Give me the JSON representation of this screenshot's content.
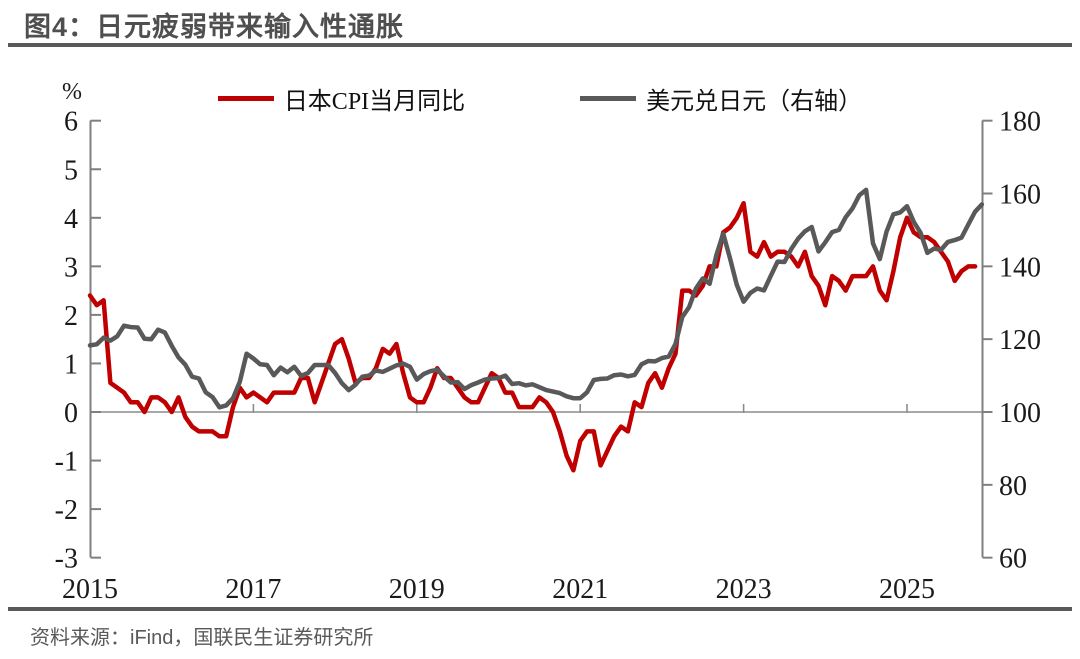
{
  "figure": {
    "title": "图4：日元疲弱带来输入性通胀",
    "source": "资料来源：iFind，国联民生证券研究所"
  },
  "colors": {
    "cpi_line": "#c00000",
    "usdjpy_line": "#595959",
    "divider": "#595959",
    "axis": "#7f7f7f",
    "zero_gridline": "#8c8c8c",
    "title_text": "#4f4f4f",
    "source_text": "#595959"
  },
  "chart_data": {
    "type": "line",
    "title": "图4：日元疲弱带来输入性通胀",
    "legend_position": "top",
    "gridlines": "zero-baseline-only",
    "x_axis": {
      "tick_labels": [
        "2015",
        "2017",
        "2019",
        "2021",
        "2023",
        "2025"
      ],
      "tick_years": [
        2015,
        2017,
        2019,
        2021,
        2023,
        2025
      ],
      "range_years": [
        2015.0,
        2025.92
      ]
    },
    "left_axis": {
      "unit": "%",
      "ticks": [
        6,
        5,
        4,
        3,
        2,
        1,
        0,
        -1,
        -2,
        -3
      ],
      "range": [
        -3,
        6
      ]
    },
    "right_axis": {
      "ticks": [
        180,
        160,
        140,
        120,
        100,
        80,
        60
      ],
      "range": [
        60,
        180
      ]
    },
    "series": [
      {
        "name": "日本CPI当月同比",
        "axis": "left",
        "color": "#c00000",
        "start": "2015-01",
        "freq": "monthly",
        "values": [
          2.4,
          2.2,
          2.3,
          0.6,
          0.5,
          0.4,
          0.2,
          0.2,
          0.0,
          0.3,
          0.3,
          0.2,
          0.0,
          0.3,
          -0.1,
          -0.3,
          -0.4,
          -0.4,
          -0.4,
          -0.5,
          -0.5,
          0.1,
          0.5,
          0.3,
          0.4,
          0.3,
          0.2,
          0.4,
          0.4,
          0.4,
          0.4,
          0.7,
          0.7,
          0.2,
          0.6,
          1.0,
          1.4,
          1.5,
          1.1,
          0.6,
          0.7,
          0.7,
          0.9,
          1.3,
          1.2,
          1.4,
          0.8,
          0.3,
          0.2,
          0.2,
          0.5,
          0.9,
          0.7,
          0.7,
          0.5,
          0.3,
          0.2,
          0.2,
          0.5,
          0.8,
          0.7,
          0.4,
          0.4,
          0.1,
          0.1,
          0.1,
          0.3,
          0.2,
          0.0,
          -0.4,
          -0.9,
          -1.2,
          -0.6,
          -0.4,
          -0.4,
          -1.1,
          -0.8,
          -0.5,
          -0.3,
          -0.4,
          0.2,
          0.1,
          0.6,
          0.8,
          0.5,
          0.9,
          1.2,
          2.5,
          2.5,
          2.4,
          2.6,
          3.0,
          3.0,
          3.7,
          3.8,
          4.0,
          4.3,
          3.3,
          3.2,
          3.5,
          3.2,
          3.3,
          3.3,
          3.2,
          3.0,
          3.3,
          2.8,
          2.6,
          2.2,
          2.8,
          2.7,
          2.5,
          2.8,
          2.8,
          2.8,
          3.0,
          2.5,
          2.3,
          2.9,
          3.6,
          4.0,
          3.7,
          3.6,
          3.6,
          3.5,
          3.3,
          3.1,
          2.7,
          2.9,
          3.0,
          3.0
        ]
      },
      {
        "name": "美元兑日元（右轴）",
        "axis": "right",
        "color": "#595959",
        "start": "2015-01",
        "freq": "monthly",
        "values": [
          118.3,
          118.6,
          120.4,
          119.6,
          120.8,
          123.7,
          123.3,
          123.2,
          120.1,
          120.0,
          122.6,
          121.8,
          118.2,
          115.0,
          113.0,
          109.7,
          109.2,
          105.4,
          104.1,
          101.3,
          101.8,
          103.8,
          108.3,
          116.0,
          114.7,
          113.1,
          112.9,
          110.1,
          112.2,
          110.9,
          112.4,
          109.9,
          110.7,
          112.9,
          112.9,
          112.9,
          110.7,
          107.9,
          106.0,
          107.5,
          109.7,
          110.0,
          111.4,
          111.0,
          111.9,
          112.8,
          113.3,
          112.4,
          108.9,
          110.4,
          111.2,
          111.6,
          109.8,
          108.1,
          108.2,
          106.3,
          107.4,
          108.1,
          108.9,
          109.2,
          109.3,
          110.0,
          107.7,
          107.9,
          107.3,
          107.6,
          106.8,
          106.0,
          105.6,
          105.2,
          104.3,
          103.8,
          103.8,
          105.4,
          108.8,
          109.1,
          109.2,
          110.1,
          110.3,
          109.8,
          110.2,
          113.1,
          114.0,
          113.9,
          114.8,
          115.2,
          118.7,
          126.1,
          128.8,
          133.9,
          136.7,
          135.2,
          143.1,
          149.0,
          142.2,
          134.9,
          130.3,
          132.7,
          133.9,
          133.4,
          137.4,
          141.3,
          141.2,
          144.8,
          147.6,
          149.6,
          150.8,
          144.1,
          146.6,
          149.4,
          150.0,
          153.5,
          155.9,
          159.5,
          161.0,
          146.3,
          142.0,
          149.6,
          154.3,
          154.8,
          156.5,
          152.2,
          149.2,
          143.7,
          144.9,
          144.5,
          146.7,
          147.2,
          147.9,
          151.5,
          155.0,
          157.0
        ]
      }
    ]
  }
}
